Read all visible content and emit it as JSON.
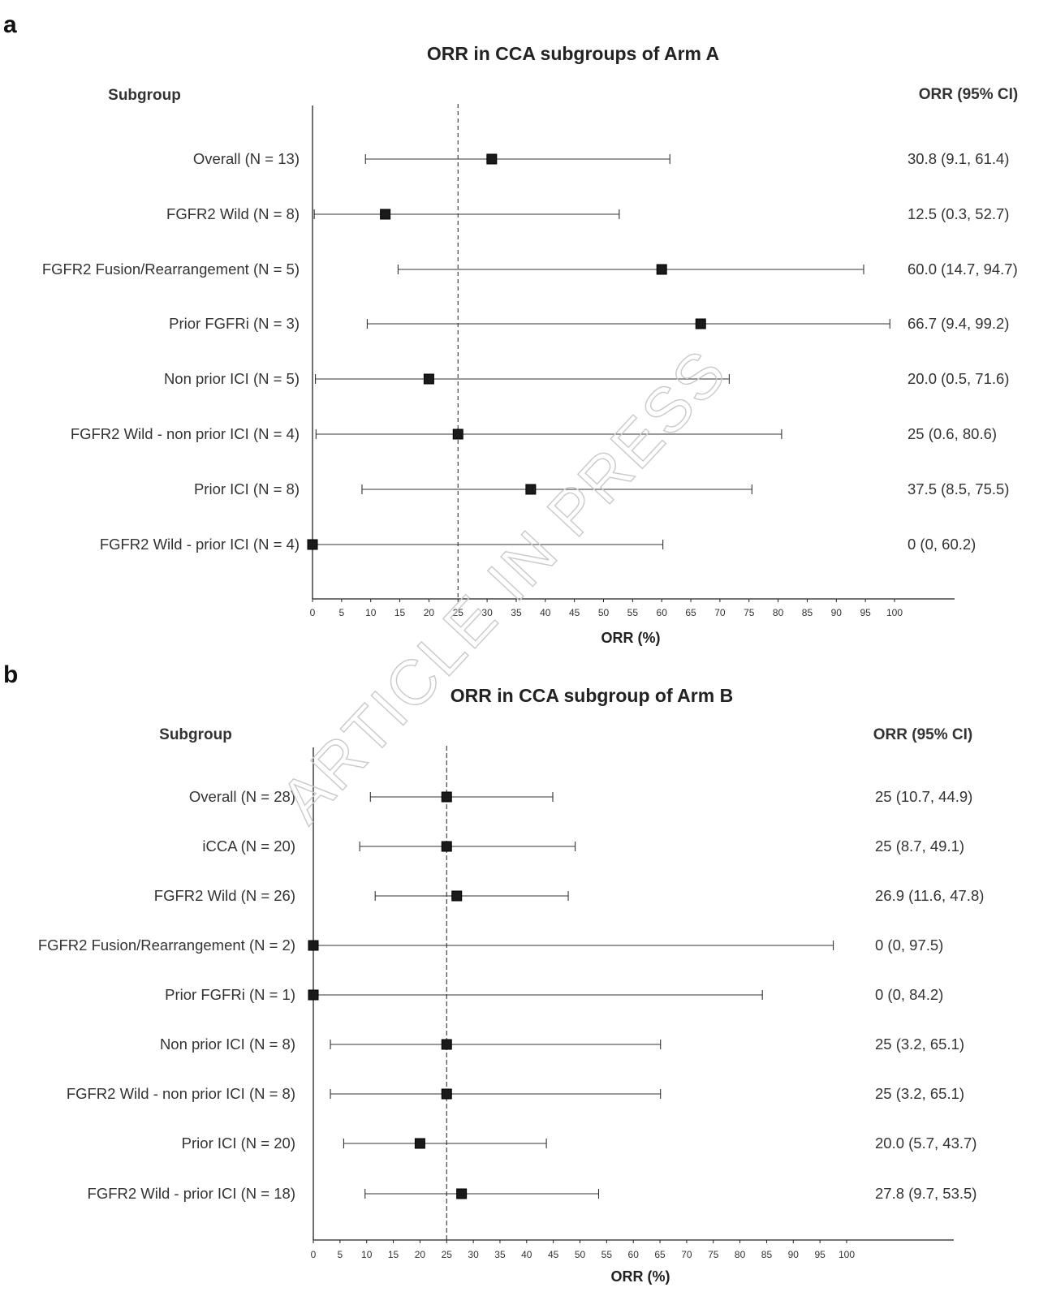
{
  "watermark": "ARTICLE IN PRESS",
  "chart_data": [
    {
      "type": "forest",
      "panel": "a",
      "title": "ORR in CCA subgroups of Arm A",
      "label_header": "Subgroup",
      "value_header": "ORR (95% CI)",
      "xlabel": "ORR (%)",
      "xlim": [
        0,
        100
      ],
      "xticks": [
        0,
        5,
        10,
        15,
        20,
        25,
        30,
        35,
        40,
        45,
        50,
        55,
        60,
        65,
        70,
        75,
        80,
        85,
        90,
        95,
        100
      ],
      "reference_line": 25,
      "reference_style": "dashed",
      "rows": [
        {
          "label": "Overall (N = 13)",
          "estimate": 30.8,
          "lower": 9.1,
          "upper": 61.4,
          "text": "30.8 (9.1, 61.4)"
        },
        {
          "label": "FGFR2 Wild (N = 8)",
          "estimate": 12.5,
          "lower": 0.3,
          "upper": 52.7,
          "text": "12.5 (0.3, 52.7)"
        },
        {
          "label": "FGFR2 Fusion/Rearrangement (N = 5)",
          "estimate": 60.0,
          "lower": 14.7,
          "upper": 94.7,
          "text": "60.0 (14.7, 94.7)"
        },
        {
          "label": "Prior FGFRi (N = 3)",
          "estimate": 66.7,
          "lower": 9.4,
          "upper": 99.2,
          "text": "66.7 (9.4, 99.2)"
        },
        {
          "label": "Non prior ICI (N = 5)",
          "estimate": 20.0,
          "lower": 0.5,
          "upper": 71.6,
          "text": "20.0 (0.5, 71.6)"
        },
        {
          "label": "FGFR2 Wild - non prior ICI (N = 4)",
          "estimate": 25,
          "lower": 0.6,
          "upper": 80.6,
          "text": "25 (0.6, 80.6)"
        },
        {
          "label": "Prior ICI (N = 8)",
          "estimate": 37.5,
          "lower": 8.5,
          "upper": 75.5,
          "text": "37.5 (8.5, 75.5)"
        },
        {
          "label": "FGFR2 Wild - prior ICI (N = 4)",
          "estimate": 0,
          "lower": 0,
          "upper": 60.2,
          "text": "0 (0, 60.2)"
        }
      ]
    },
    {
      "type": "forest",
      "panel": "b",
      "title": "ORR in CCA subgroup of Arm B",
      "label_header": "Subgroup",
      "value_header": "ORR (95% CI)",
      "xlabel": "ORR (%)",
      "xlim": [
        0,
        100
      ],
      "xticks": [
        0,
        5,
        10,
        15,
        20,
        25,
        30,
        35,
        40,
        45,
        50,
        55,
        60,
        65,
        70,
        75,
        80,
        85,
        90,
        95,
        100
      ],
      "reference_line": 25,
      "reference_style": "dashed",
      "rows": [
        {
          "label": "Overall (N = 28)",
          "estimate": 25,
          "lower": 10.7,
          "upper": 44.9,
          "text": "25 (10.7, 44.9)"
        },
        {
          "label": "iCCA (N = 20)",
          "estimate": 25,
          "lower": 8.7,
          "upper": 49.1,
          "text": "25 (8.7, 49.1)"
        },
        {
          "label": "FGFR2 Wild (N = 26)",
          "estimate": 26.9,
          "lower": 11.6,
          "upper": 47.8,
          "text": "26.9 (11.6, 47.8)"
        },
        {
          "label": "FGFR2 Fusion/Rearrangement (N = 2)",
          "estimate": 0,
          "lower": 0,
          "upper": 97.5,
          "text": "0 (0, 97.5)"
        },
        {
          "label": "Prior FGFRi (N = 1)",
          "estimate": 0,
          "lower": 0,
          "upper": 84.2,
          "text": "0 (0, 84.2)"
        },
        {
          "label": "Non prior ICI (N = 8)",
          "estimate": 25,
          "lower": 3.2,
          "upper": 65.1,
          "text": "25 (3.2, 65.1)"
        },
        {
          "label": "FGFR2 Wild - non prior ICI (N = 8)",
          "estimate": 25,
          "lower": 3.2,
          "upper": 65.1,
          "text": "25 (3.2, 65.1)"
        },
        {
          "label": "Prior ICI (N = 20)",
          "estimate": 20.0,
          "lower": 5.7,
          "upper": 43.7,
          "text": "20.0 (5.7, 43.7)"
        },
        {
          "label": "FGFR2 Wild - prior ICI (N = 18)",
          "estimate": 27.8,
          "lower": 9.7,
          "upper": 53.5,
          "text": "27.8 (9.7, 53.5)"
        }
      ]
    }
  ]
}
